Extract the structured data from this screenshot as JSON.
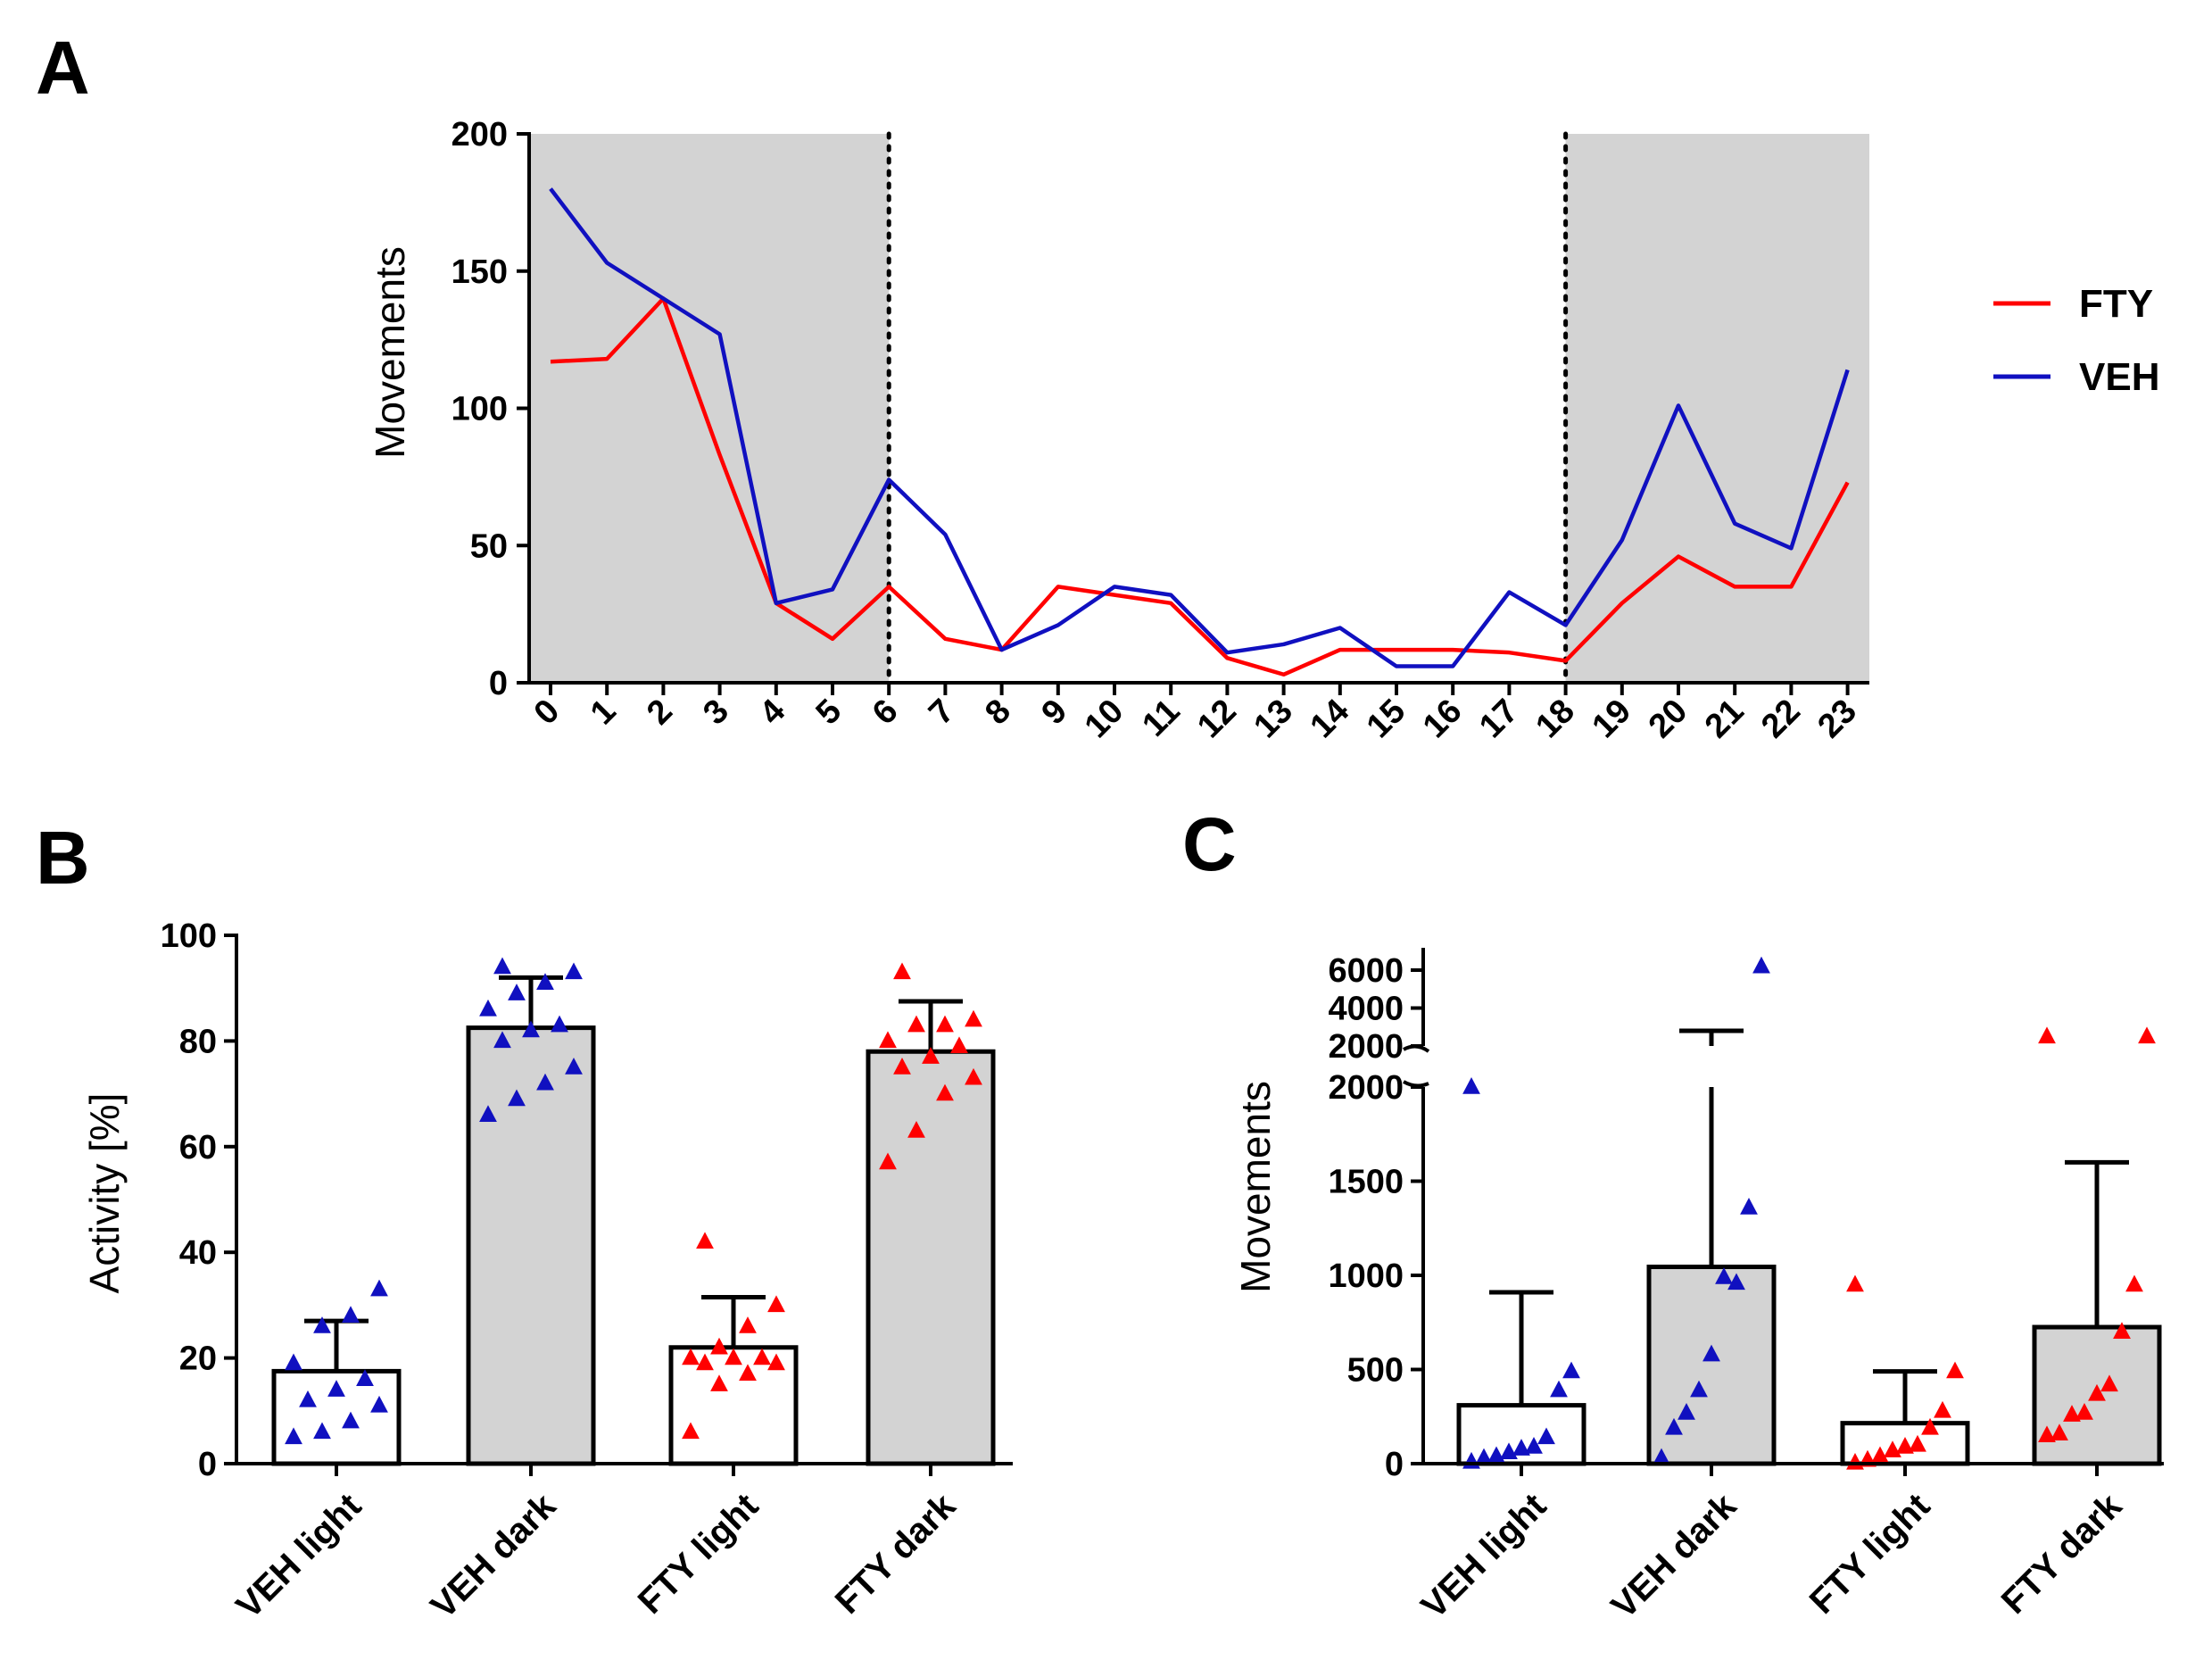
{
  "panels": {
    "a": "A",
    "b": "B",
    "c": "C"
  },
  "colors": {
    "FTY": "#ff0000",
    "VEH": "#1010c0",
    "dark_shade": "#d3d3d3",
    "bar_dark": "#d3d3d3",
    "bar_light": "#ffffff"
  },
  "chart_data": [
    {
      "id": "A",
      "type": "line",
      "title": "",
      "xlabel": "",
      "ylabel": "Movements",
      "x": [
        0,
        1,
        2,
        3,
        4,
        5,
        6,
        7,
        8,
        9,
        10,
        11,
        12,
        13,
        14,
        15,
        16,
        17,
        18,
        19,
        20,
        21,
        22,
        23
      ],
      "ylim": [
        0,
        200
      ],
      "yticks": [
        0,
        50,
        100,
        150,
        200
      ],
      "dark_periods": [
        [
          0,
          6
        ],
        [
          18,
          23
        ]
      ],
      "dotted_lines_at": [
        6,
        18
      ],
      "legend_position": "right",
      "series": [
        {
          "name": "FTY",
          "color": "#ff0000",
          "values": [
            117,
            118,
            140,
            83,
            29,
            16,
            35,
            16,
            12,
            35,
            32,
            29,
            9,
            3,
            12,
            12,
            12,
            11,
            8,
            29,
            46,
            35,
            35,
            73
          ]
        },
        {
          "name": "VEH",
          "color": "#1010c0",
          "values": [
            180,
            153,
            140,
            127,
            29,
            34,
            74,
            54,
            12,
            21,
            35,
            32,
            11,
            14,
            20,
            6,
            6,
            33,
            21,
            52,
            101,
            58,
            49,
            114
          ]
        }
      ]
    },
    {
      "id": "B",
      "type": "bar",
      "title": "",
      "xlabel": "",
      "ylabel": "Activity [%]",
      "ylim": [
        0,
        100
      ],
      "yticks": [
        0,
        20,
        40,
        60,
        80,
        100
      ],
      "categories": [
        "VEH light",
        "VEH dark",
        "FTY light",
        "FTY dark"
      ],
      "values": [
        17.5,
        82.5,
        22,
        78
      ],
      "errors": [
        9.5,
        9.5,
        9.5,
        9.5
      ],
      "bar_fill": [
        "white",
        "gray",
        "white",
        "gray"
      ],
      "point_colors": [
        "#1010c0",
        "#1010c0",
        "#ff0000",
        "#ff0000"
      ],
      "points": [
        [
          5,
          6,
          8,
          11,
          12,
          14,
          16,
          19,
          26,
          28,
          33
        ],
        [
          66,
          69,
          72,
          75,
          80,
          82,
          83,
          86,
          89,
          91,
          93,
          94
        ],
        [
          6,
          15,
          17,
          19,
          19,
          20,
          20,
          20,
          22,
          26,
          30,
          42
        ],
        [
          57,
          63,
          70,
          73,
          75,
          77,
          79,
          80,
          83,
          83,
          84,
          93
        ]
      ]
    },
    {
      "id": "C",
      "type": "bar",
      "title": "",
      "xlabel": "",
      "ylabel": "Movements",
      "ylim": [
        0,
        6000
      ],
      "axis_break": {
        "lower_range": [
          0,
          2000
        ],
        "upper_range": [
          2000,
          6000
        ]
      },
      "yticks_lower": [
        0,
        500,
        1000,
        1500,
        2000
      ],
      "yticks_upper": [
        2000,
        4000,
        6000
      ],
      "categories": [
        "VEH light",
        "VEH dark",
        "FTY light",
        "FTY dark"
      ],
      "values": [
        310,
        1045,
        215,
        725
      ],
      "error_tops": [
        910,
        2800,
        490,
        1600
      ],
      "bar_fill": [
        "white",
        "gray",
        "white",
        "gray"
      ],
      "point_colors": [
        "#1010c0",
        "#1010c0",
        "#ff0000",
        "#ff0000"
      ],
      "points": [
        [
          10,
          30,
          40,
          60,
          80,
          90,
          140,
          390,
          490,
          2000
        ],
        [
          30,
          190,
          270,
          390,
          580,
          990,
          960,
          1360,
          6200
        ],
        [
          5,
          20,
          40,
          70,
          90,
          100,
          190,
          280,
          490,
          950
        ],
        [
          150,
          160,
          260,
          270,
          370,
          420,
          700,
          950,
          2500,
          2500
        ]
      ]
    }
  ]
}
